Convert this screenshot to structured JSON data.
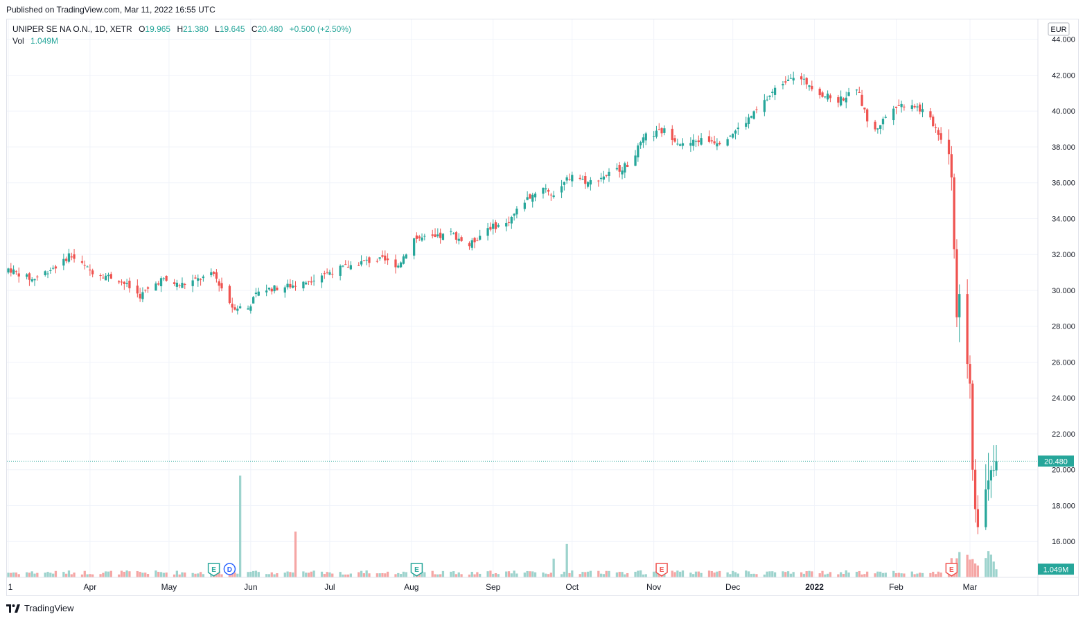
{
  "header": {
    "published": "Published on TradingView.com, Mar 11, 2022 16:55 UTC"
  },
  "legend": {
    "symbol": "UNIPER SE NA O.N., 1D, XETR",
    "open_label": "O",
    "open": "19.965",
    "high_label": "H",
    "high": "21.380",
    "low_label": "L",
    "low": "19.645",
    "close_label": "C",
    "close": "20.480",
    "change": "+0.500 (+2.50%)",
    "vol_label": "Vol",
    "vol": "1.049M"
  },
  "currency": "EUR",
  "last_price_badge": "20.480",
  "volume_badge": "1.049M",
  "footer": {
    "brand": "TradingView"
  },
  "colors": {
    "up": "#26a69a",
    "down": "#ef5350",
    "up_vol": "#9dd3cd",
    "down_vol": "#f5a6a5",
    "grid": "#f0f3fa"
  },
  "chart_data": {
    "type": "candlestick",
    "title": "UNIPER SE NA O.N., 1D, XETR",
    "currency": "EUR",
    "y_ticks": [
      16,
      18,
      20,
      22,
      24,
      26,
      28,
      30,
      32,
      34,
      36,
      38,
      40,
      42,
      44
    ],
    "y_tick_labels": [
      "16.000",
      "18.000",
      "20.000",
      "22.000",
      "24.000",
      "26.000",
      "28.000",
      "30.000",
      "32.000",
      "34.000",
      "36.000",
      "38.000",
      "40.000",
      "42.000",
      "44.000"
    ],
    "ylim": [
      14,
      44.8
    ],
    "x_range": [
      "2021-03-01",
      "2022-03-11"
    ],
    "x_labels": [
      {
        "label": "1",
        "date": "2021-03-01"
      },
      {
        "label": "Apr",
        "date": "2021-04-01"
      },
      {
        "label": "May",
        "date": "2021-05-01"
      },
      {
        "label": "Jun",
        "date": "2021-06-01"
      },
      {
        "label": "Jul",
        "date": "2021-07-01"
      },
      {
        "label": "Aug",
        "date": "2021-08-01"
      },
      {
        "label": "Sep",
        "date": "2021-09-01"
      },
      {
        "label": "Oct",
        "date": "2021-10-01"
      },
      {
        "label": "Nov",
        "date": "2021-11-01"
      },
      {
        "label": "Dec",
        "date": "2021-12-01"
      },
      {
        "label": "2022",
        "date": "2022-01-01"
      },
      {
        "label": "Feb",
        "date": "2022-02-01"
      },
      {
        "label": "Mar",
        "date": "2022-03-01"
      }
    ],
    "close_anchors": [
      [
        "2021-03-01",
        31.2
      ],
      [
        "2021-03-10",
        30.6
      ],
      [
        "2021-03-22",
        31.6
      ],
      [
        "2021-03-24",
        32.0
      ],
      [
        "2021-04-01",
        31.1
      ],
      [
        "2021-04-12",
        30.6
      ],
      [
        "2021-04-20",
        29.7
      ],
      [
        "2021-04-28",
        30.6
      ],
      [
        "2021-05-05",
        30.3
      ],
      [
        "2021-05-12",
        30.6
      ],
      [
        "2021-05-18",
        30.9
      ],
      [
        "2021-05-25",
        29.1
      ],
      [
        "2021-05-31",
        29.0
      ],
      [
        "2021-06-04",
        30.0
      ],
      [
        "2021-06-14",
        30.2
      ],
      [
        "2021-06-21",
        30.4
      ],
      [
        "2021-06-28",
        30.9
      ],
      [
        "2021-07-07",
        31.3
      ],
      [
        "2021-07-14",
        31.6
      ],
      [
        "2021-07-21",
        31.7
      ],
      [
        "2021-07-27",
        31.4
      ],
      [
        "2021-08-02",
        32.9
      ],
      [
        "2021-08-10",
        32.9
      ],
      [
        "2021-08-16",
        33.2
      ],
      [
        "2021-08-23",
        32.5
      ],
      [
        "2021-08-30",
        33.5
      ],
      [
        "2021-09-06",
        33.7
      ],
      [
        "2021-09-13",
        35.0
      ],
      [
        "2021-09-20",
        35.8
      ],
      [
        "2021-09-24",
        35.3
      ],
      [
        "2021-10-01",
        36.5
      ],
      [
        "2021-10-07",
        36.0
      ],
      [
        "2021-10-15",
        36.5
      ],
      [
        "2021-10-22",
        37.0
      ],
      [
        "2021-10-29",
        38.6
      ],
      [
        "2021-11-05",
        38.9
      ],
      [
        "2021-11-12",
        38.1
      ],
      [
        "2021-11-19",
        38.4
      ],
      [
        "2021-11-26",
        38.3
      ],
      [
        "2021-12-03",
        39.0
      ],
      [
        "2021-12-10",
        40.0
      ],
      [
        "2021-12-17",
        41.2
      ],
      [
        "2021-12-23",
        42.0
      ],
      [
        "2021-12-30",
        41.5
      ],
      [
        "2022-01-04",
        40.9
      ],
      [
        "2022-01-10",
        40.6
      ],
      [
        "2022-01-14",
        40.9
      ],
      [
        "2022-01-17",
        41.3
      ],
      [
        "2022-01-21",
        39.5
      ],
      [
        "2022-01-24",
        38.9
      ],
      [
        "2022-01-31",
        40.3
      ],
      [
        "2022-02-07",
        40.4
      ],
      [
        "2022-02-11",
        40.0
      ],
      [
        "2022-02-15",
        39.3
      ],
      [
        "2022-02-17",
        38.8
      ],
      [
        "2022-02-21",
        37.6
      ],
      [
        "2022-02-22",
        36.3
      ],
      [
        "2022-02-23",
        32.3
      ],
      [
        "2022-02-24",
        28.5
      ],
      [
        "2022-02-25",
        29.8
      ],
      [
        "2022-02-28",
        25.9
      ],
      [
        "2022-03-01",
        24.8
      ],
      [
        "2022-03-02",
        20.0
      ],
      [
        "2022-03-03",
        17.8
      ],
      [
        "2022-03-04",
        16.8
      ],
      [
        "2022-03-07",
        18.9
      ],
      [
        "2022-03-08",
        19.4
      ],
      [
        "2022-03-09",
        19.98
      ],
      [
        "2022-03-10",
        19.98
      ],
      [
        "2022-03-11",
        20.48
      ]
    ],
    "volume_events": [
      {
        "date": "2021-05-28",
        "volume_m": 13.1
      },
      {
        "date": "2021-06-18",
        "volume_m": 5.9
      },
      {
        "date": "2021-09-24",
        "volume_m": 2.4
      },
      {
        "date": "2021-09-29",
        "volume_m": 4.3
      }
    ],
    "events": [
      {
        "label": "E",
        "date": "2021-05-18",
        "type": "earnings"
      },
      {
        "label": "D",
        "date": "2021-05-24",
        "type": "dividend"
      },
      {
        "label": "E",
        "date": "2021-08-03",
        "type": "earnings"
      },
      {
        "label": "E",
        "date": "2021-11-04",
        "type": "earnings"
      },
      {
        "label": "E",
        "date": "2022-02-22",
        "type": "earnings"
      }
    ],
    "last": {
      "date": "2022-03-11",
      "open": 19.965,
      "high": 21.38,
      "low": 19.645,
      "close": 20.48,
      "volume_m": 1.049
    }
  }
}
